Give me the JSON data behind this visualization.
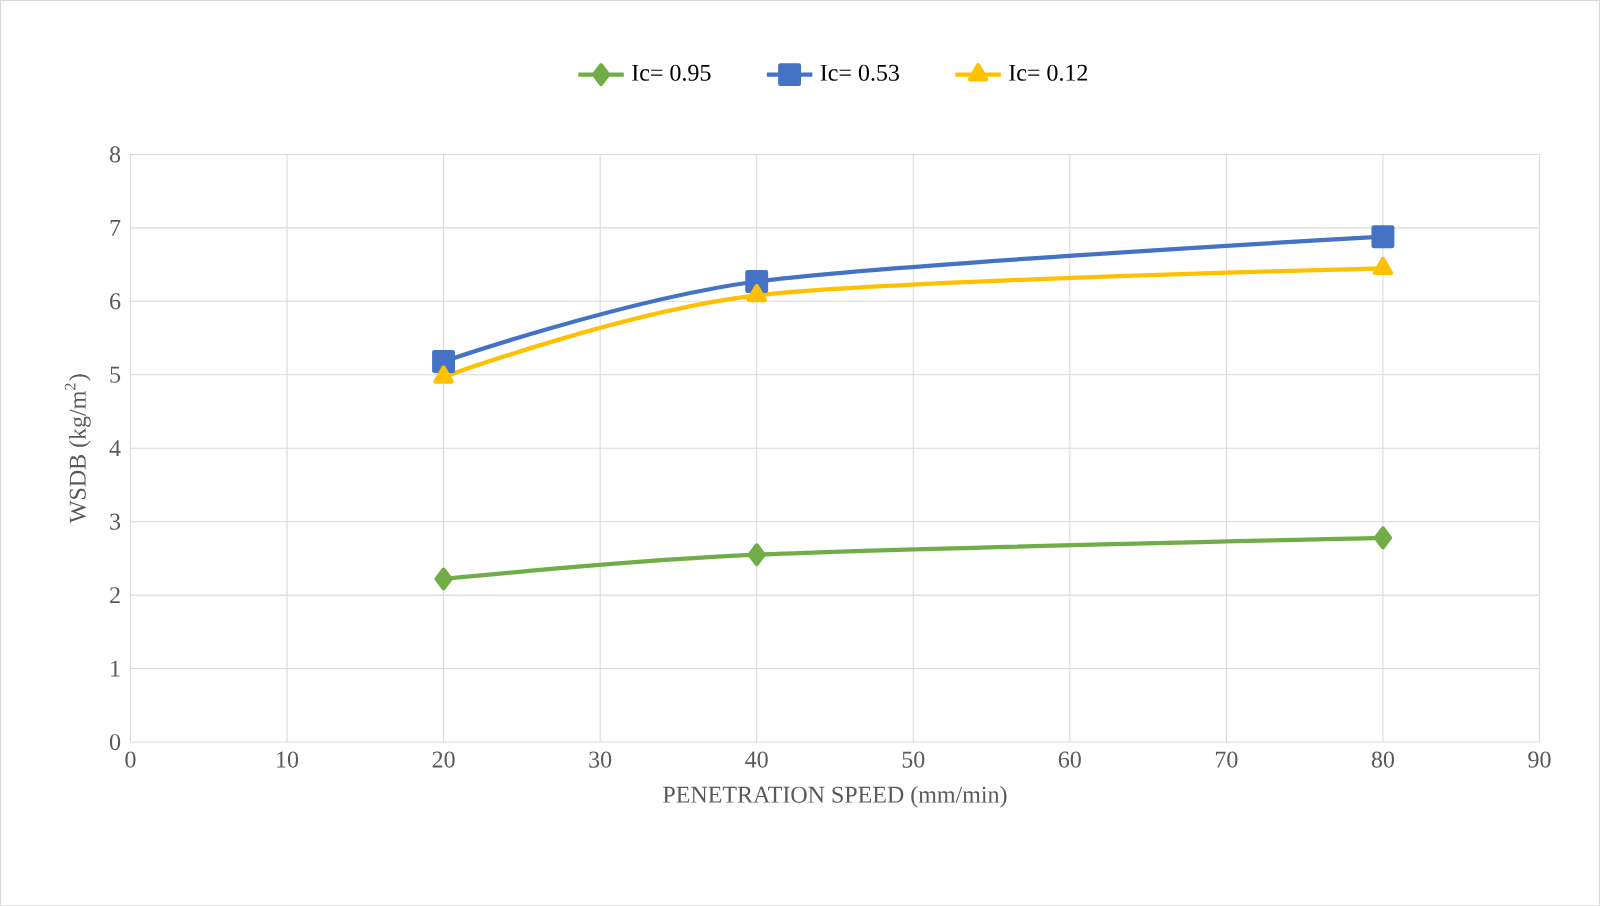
{
  "chart_data": {
    "type": "line",
    "xlabel": "PENETRATION SPEED (mm/min)",
    "ylabel": "WSDB (kg/m$^{2}$)",
    "x": [
      20,
      40,
      80
    ],
    "series": [
      {
        "name": "Ic= 0.95",
        "color": "#70ad47",
        "marker": "diamond",
        "values": [
          2.22,
          2.55,
          2.78
        ]
      },
      {
        "name": "Ic= 0.53",
        "color": "#4472c4",
        "marker": "square",
        "values": [
          5.18,
          6.27,
          6.88
        ]
      },
      {
        "name": "Ic= 0.12",
        "color": "#ffc000",
        "marker": "triangle",
        "values": [
          4.97,
          6.08,
          6.45
        ]
      }
    ],
    "xlim": [
      0,
      90
    ],
    "xticks": [
      0,
      10,
      20,
      30,
      40,
      50,
      60,
      70,
      80,
      90
    ],
    "ylim": [
      0,
      8
    ],
    "yticks": [
      0,
      1,
      2,
      3,
      4,
      5,
      6,
      7,
      8
    ],
    "grid": true,
    "legend": "top",
    "line_style": "solid"
  }
}
